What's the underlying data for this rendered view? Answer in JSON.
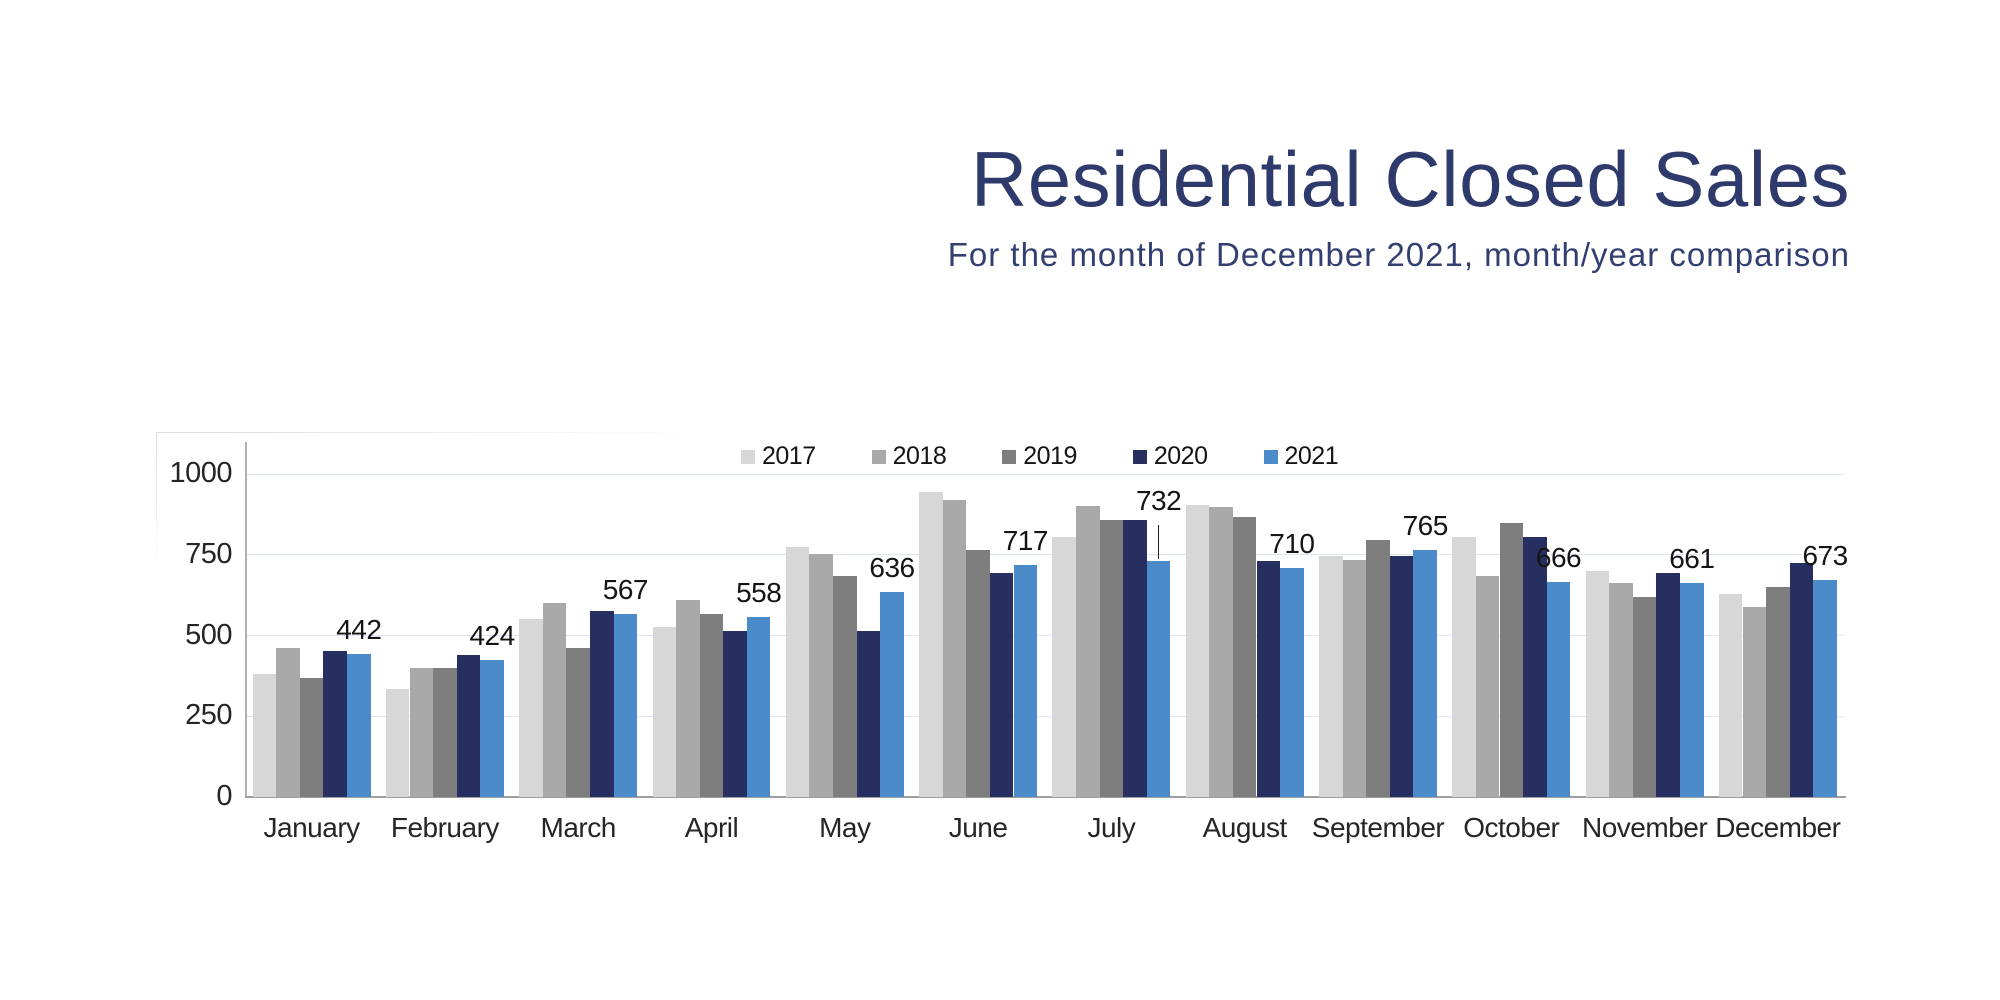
{
  "page": {
    "background": "#ffffff"
  },
  "chart_data": {
    "type": "bar",
    "title": "Residential Closed Sales",
    "subtitle": "For the month of December 2021, month/year comparison",
    "title_color": "#2e3a6b",
    "categories": [
      "January",
      "February",
      "March",
      "April",
      "May",
      "June",
      "July",
      "August",
      "September",
      "October",
      "November",
      "December"
    ],
    "series": [
      {
        "name": "2017",
        "color": "#d7d7d7",
        "values": [
          380,
          335,
          552,
          525,
          775,
          944,
          806,
          903,
          745,
          806,
          701,
          627
        ]
      },
      {
        "name": "2018",
        "color": "#a9a9a9",
        "values": [
          460,
          400,
          600,
          610,
          752,
          919,
          900,
          898,
          733,
          683,
          662,
          587
        ]
      },
      {
        "name": "2019",
        "color": "#7e7e7e",
        "values": [
          368,
          398,
          462,
          567,
          683,
          766,
          859,
          868,
          797,
          848,
          618,
          649
        ]
      },
      {
        "name": "2020",
        "color": "#272f60",
        "values": [
          452,
          440,
          577,
          515,
          515,
          692,
          859,
          732,
          747,
          806,
          693,
          724
        ]
      },
      {
        "name": "2021",
        "color": "#4b8bc9",
        "values": [
          442,
          424,
          567,
          558,
          636,
          717,
          732,
          710,
          765,
          666,
          661,
          673
        ]
      }
    ],
    "data_labels": {
      "series": "2021",
      "values": [
        "442",
        "424",
        "567",
        "558",
        "636",
        "717",
        "732",
        "710",
        "765",
        "666",
        "661",
        "673"
      ]
    },
    "annotation": {
      "callout_month": "July",
      "callout_value": "732",
      "has_leader_line": true
    },
    "y_ticks": [
      "0",
      "250",
      "500",
      "750",
      "1000"
    ],
    "ylim": [
      0,
      1100
    ],
    "grid": true,
    "legend_position": "top-center",
    "grid_color": "#dde6f2",
    "axis_color": "#9e9e9e"
  }
}
